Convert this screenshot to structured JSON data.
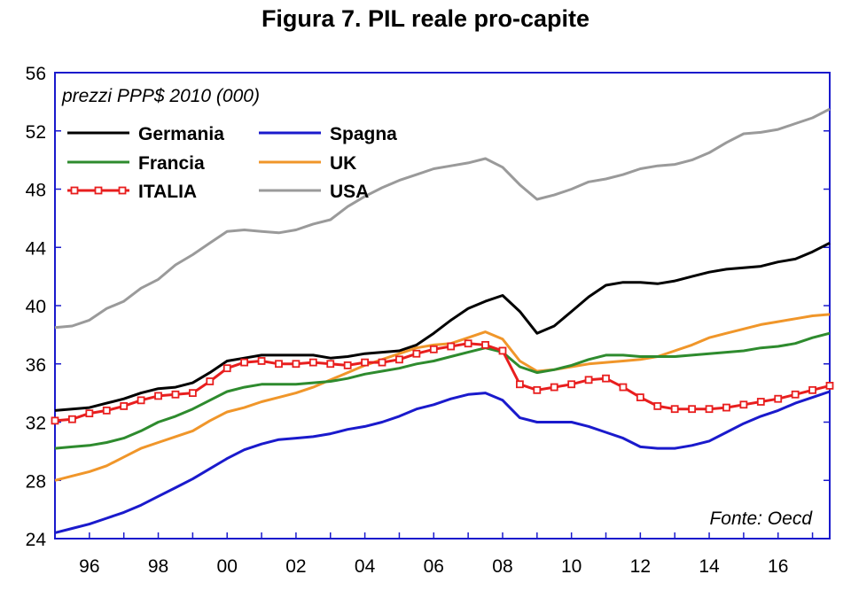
{
  "chart_data": {
    "type": "line",
    "title": "Figura 7. PIL reale pro-capite",
    "subtitle": "prezzi PPP$ 2010 (000)",
    "source": "Fonte: Oecd",
    "xlim": [
      1995,
      2017.5
    ],
    "ylim": [
      24,
      56
    ],
    "yticks": [
      24,
      28,
      32,
      36,
      40,
      44,
      48,
      52,
      56
    ],
    "xticks": [
      {
        "value": 1996,
        "label": "96"
      },
      {
        "value": 1998,
        "label": "98"
      },
      {
        "value": 2000,
        "label": "00"
      },
      {
        "value": 2002,
        "label": "02"
      },
      {
        "value": 2004,
        "label": "04"
      },
      {
        "value": 2006,
        "label": "06"
      },
      {
        "value": 2008,
        "label": "08"
      },
      {
        "value": 2010,
        "label": "10"
      },
      {
        "value": 2012,
        "label": "12"
      },
      {
        "value": 2014,
        "label": "14"
      },
      {
        "value": 2016,
        "label": "16"
      }
    ],
    "grid": false,
    "legend_position": "top-left",
    "series": [
      {
        "name": "USA",
        "color": "#9a9a9a",
        "marker": false,
        "x": [
          1995,
          1995.5,
          1996,
          1996.5,
          1997,
          1997.5,
          1998,
          1998.5,
          1999,
          1999.5,
          2000,
          2000.5,
          2001,
          2001.5,
          2002,
          2002.5,
          2003,
          2003.5,
          2004,
          2004.5,
          2005,
          2005.5,
          2006,
          2006.5,
          2007,
          2007.5,
          2008,
          2008.5,
          2009,
          2009.5,
          2010,
          2010.5,
          2011,
          2011.5,
          2012,
          2012.5,
          2013,
          2013.5,
          2014,
          2014.5,
          2015,
          2015.5,
          2016,
          2016.5,
          2017,
          2017.5
        ],
        "y": [
          38.5,
          38.6,
          39.0,
          39.8,
          40.3,
          41.2,
          41.8,
          42.8,
          43.5,
          44.3,
          45.1,
          45.2,
          45.1,
          45.0,
          45.2,
          45.6,
          45.9,
          46.8,
          47.5,
          48.1,
          48.6,
          49.0,
          49.4,
          49.6,
          49.8,
          50.1,
          49.5,
          48.3,
          47.3,
          47.6,
          48.0,
          48.5,
          48.7,
          49.0,
          49.4,
          49.6,
          49.7,
          50.0,
          50.5,
          51.2,
          51.8,
          51.9,
          52.1,
          52.5,
          52.9,
          53.5
        ]
      },
      {
        "name": "Germania",
        "color": "#000000",
        "marker": false,
        "x": [
          1995,
          1995.5,
          1996,
          1996.5,
          1997,
          1997.5,
          1998,
          1998.5,
          1999,
          1999.5,
          2000,
          2000.5,
          2001,
          2001.5,
          2002,
          2002.5,
          2003,
          2003.5,
          2004,
          2004.5,
          2005,
          2005.5,
          2006,
          2006.5,
          2007,
          2007.5,
          2008,
          2008.5,
          2009,
          2009.5,
          2010,
          2010.5,
          2011,
          2011.5,
          2012,
          2012.5,
          2013,
          2013.5,
          2014,
          2014.5,
          2015,
          2015.5,
          2016,
          2016.5,
          2017,
          2017.5
        ],
        "y": [
          32.8,
          32.9,
          33.0,
          33.3,
          33.6,
          34.0,
          34.3,
          34.4,
          34.7,
          35.4,
          36.2,
          36.4,
          36.6,
          36.6,
          36.6,
          36.6,
          36.4,
          36.5,
          36.7,
          36.8,
          36.9,
          37.3,
          38.1,
          39.0,
          39.8,
          40.3,
          40.7,
          39.6,
          38.1,
          38.6,
          39.6,
          40.6,
          41.4,
          41.6,
          41.6,
          41.5,
          41.7,
          42.0,
          42.3,
          42.5,
          42.6,
          42.7,
          43.0,
          43.2,
          43.7,
          44.3
        ]
      },
      {
        "name": "UK",
        "color": "#f0962a",
        "marker": false,
        "x": [
          1995,
          1995.5,
          1996,
          1996.5,
          1997,
          1997.5,
          1998,
          1998.5,
          1999,
          1999.5,
          2000,
          2000.5,
          2001,
          2001.5,
          2002,
          2002.5,
          2003,
          2003.5,
          2004,
          2004.5,
          2005,
          2005.5,
          2006,
          2006.5,
          2007,
          2007.5,
          2008,
          2008.5,
          2009,
          2009.5,
          2010,
          2010.5,
          2011,
          2011.5,
          2012,
          2012.5,
          2013,
          2013.5,
          2014,
          2014.5,
          2015,
          2015.5,
          2016,
          2016.5,
          2017,
          2017.5
        ],
        "y": [
          28.0,
          28.3,
          28.6,
          29.0,
          29.6,
          30.2,
          30.6,
          31.0,
          31.4,
          32.1,
          32.7,
          33.0,
          33.4,
          33.7,
          34.0,
          34.4,
          34.9,
          35.4,
          35.9,
          36.3,
          36.7,
          37.1,
          37.3,
          37.4,
          37.8,
          38.2,
          37.7,
          36.2,
          35.5,
          35.6,
          35.8,
          36.0,
          36.1,
          36.2,
          36.3,
          36.5,
          36.9,
          37.3,
          37.8,
          38.1,
          38.4,
          38.7,
          38.9,
          39.1,
          39.3,
          39.4
        ]
      },
      {
        "name": "Francia",
        "color": "#2e8b2e",
        "marker": false,
        "x": [
          1995,
          1995.5,
          1996,
          1996.5,
          1997,
          1997.5,
          1998,
          1998.5,
          1999,
          1999.5,
          2000,
          2000.5,
          2001,
          2001.5,
          2002,
          2002.5,
          2003,
          2003.5,
          2004,
          2004.5,
          2005,
          2005.5,
          2006,
          2006.5,
          2007,
          2007.5,
          2008,
          2008.5,
          2009,
          2009.5,
          2010,
          2010.5,
          2011,
          2011.5,
          2012,
          2012.5,
          2013,
          2013.5,
          2014,
          2014.5,
          2015,
          2015.5,
          2016,
          2016.5,
          2017,
          2017.5
        ],
        "y": [
          30.2,
          30.3,
          30.4,
          30.6,
          30.9,
          31.4,
          32.0,
          32.4,
          32.9,
          33.5,
          34.1,
          34.4,
          34.6,
          34.6,
          34.6,
          34.7,
          34.8,
          35.0,
          35.3,
          35.5,
          35.7,
          36.0,
          36.2,
          36.5,
          36.8,
          37.1,
          36.8,
          35.8,
          35.4,
          35.6,
          35.9,
          36.3,
          36.6,
          36.6,
          36.5,
          36.5,
          36.5,
          36.6,
          36.7,
          36.8,
          36.9,
          37.1,
          37.2,
          37.4,
          37.8,
          38.1
        ]
      },
      {
        "name": "ITALIA",
        "color": "#e81e1e",
        "marker": true,
        "x": [
          1995,
          1995.5,
          1996,
          1996.5,
          1997,
          1997.5,
          1998,
          1998.5,
          1999,
          1999.5,
          2000,
          2000.5,
          2001,
          2001.5,
          2002,
          2002.5,
          2003,
          2003.5,
          2004,
          2004.5,
          2005,
          2005.5,
          2006,
          2006.5,
          2007,
          2007.5,
          2008,
          2008.5,
          2009,
          2009.5,
          2010,
          2010.5,
          2011,
          2011.5,
          2012,
          2012.5,
          2013,
          2013.5,
          2014,
          2014.5,
          2015,
          2015.5,
          2016,
          2016.5,
          2017,
          2017.5
        ],
        "y": [
          32.1,
          32.2,
          32.6,
          32.8,
          33.1,
          33.5,
          33.8,
          33.9,
          34.0,
          34.8,
          35.7,
          36.1,
          36.2,
          36.0,
          36.0,
          36.1,
          36.0,
          35.9,
          36.1,
          36.1,
          36.3,
          36.7,
          37.0,
          37.2,
          37.4,
          37.3,
          36.9,
          34.6,
          34.2,
          34.4,
          34.6,
          34.9,
          35.0,
          34.4,
          33.7,
          33.1,
          32.9,
          32.9,
          32.9,
          33.0,
          33.2,
          33.4,
          33.6,
          33.9,
          34.2,
          34.5
        ]
      },
      {
        "name": "Spagna",
        "color": "#1a1acc",
        "marker": false,
        "x": [
          1995,
          1995.5,
          1996,
          1996.5,
          1997,
          1997.5,
          1998,
          1998.5,
          1999,
          1999.5,
          2000,
          2000.5,
          2001,
          2001.5,
          2002,
          2002.5,
          2003,
          2003.5,
          2004,
          2004.5,
          2005,
          2005.5,
          2006,
          2006.5,
          2007,
          2007.5,
          2008,
          2008.5,
          2009,
          2009.5,
          2010,
          2010.5,
          2011,
          2011.5,
          2012,
          2012.5,
          2013,
          2013.5,
          2014,
          2014.5,
          2015,
          2015.5,
          2016,
          2016.5,
          2017,
          2017.5
        ],
        "y": [
          24.4,
          24.7,
          25.0,
          25.4,
          25.8,
          26.3,
          26.9,
          27.5,
          28.1,
          28.8,
          29.5,
          30.1,
          30.5,
          30.8,
          30.9,
          31.0,
          31.2,
          31.5,
          31.7,
          32.0,
          32.4,
          32.9,
          33.2,
          33.6,
          33.9,
          34.0,
          33.5,
          32.3,
          32.0,
          32.0,
          32.0,
          31.7,
          31.3,
          30.9,
          30.3,
          30.2,
          30.2,
          30.4,
          30.7,
          31.3,
          31.9,
          32.4,
          32.8,
          33.3,
          33.7,
          34.1
        ]
      }
    ],
    "legend": [
      {
        "name": "Germania",
        "color": "#000000",
        "marker": false,
        "col": 0,
        "row": 0
      },
      {
        "name": "Francia",
        "color": "#2e8b2e",
        "marker": false,
        "col": 0,
        "row": 1
      },
      {
        "name": "ITALIA",
        "color": "#e81e1e",
        "marker": true,
        "col": 0,
        "row": 2
      },
      {
        "name": "Spagna",
        "color": "#1a1acc",
        "marker": false,
        "col": 1,
        "row": 0
      },
      {
        "name": "UK",
        "color": "#f0962a",
        "marker": false,
        "col": 1,
        "row": 1
      },
      {
        "name": "USA",
        "color": "#9a9a9a",
        "marker": false,
        "col": 1,
        "row": 2
      }
    ],
    "frame_color": "#1a1acc"
  }
}
